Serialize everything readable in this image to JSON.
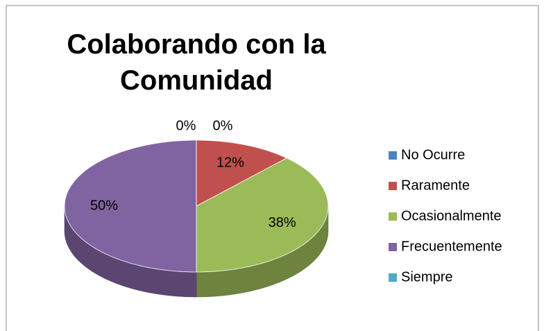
{
  "chart_data": {
    "type": "pie",
    "title": "Colaborando con la Comunidad",
    "categories": [
      "No Ocurre",
      "Raramente",
      "Ocasionalmente",
      "Frecuentemente",
      "Siempre"
    ],
    "values": [
      0,
      12,
      38,
      50,
      0
    ],
    "value_labels": [
      "0%",
      "12%",
      "38%",
      "50%",
      "0%"
    ],
    "colors": [
      "#4f81bd",
      "#c0504d",
      "#9bbb59",
      "#8064a2",
      "#4bacc6"
    ],
    "legend": "right"
  }
}
